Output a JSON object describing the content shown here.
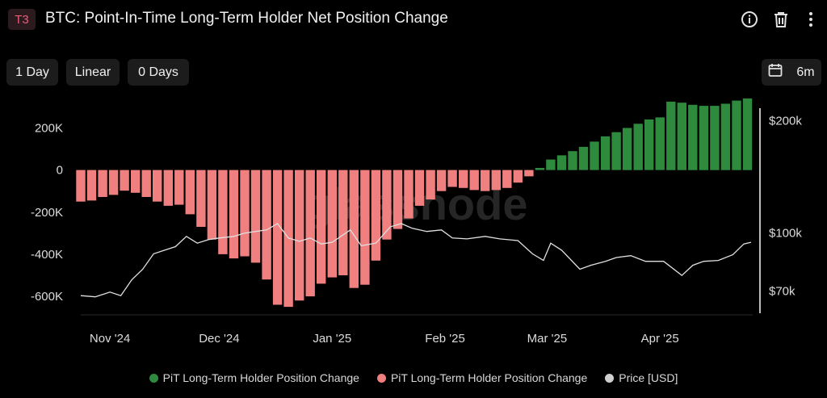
{
  "header": {
    "badge": "T3",
    "title": "BTC: Point-In-Time Long-Term Holder Net Position Change"
  },
  "toolbar": {
    "resolution": "1 Day",
    "scale": "Linear",
    "moving_average": "0 Days",
    "range": "6m"
  },
  "icons": [
    "info-icon",
    "trash-icon",
    "more-icon",
    "calendar-icon"
  ],
  "watermark": "glassnode",
  "colors": {
    "positive": "#2e8b3e",
    "negative": "#f07f7f",
    "price": "#e0e0e0",
    "background": "#000000"
  },
  "chart_data": {
    "type": "bar",
    "title": "BTC: Point-In-Time Long-Term Holder Net Position Change",
    "x_range": [
      "2024-10-24",
      "2025-04-26"
    ],
    "x_ticks": [
      {
        "date": "2024-11-01",
        "label": "Nov '24"
      },
      {
        "date": "2024-12-01",
        "label": "Dec '24"
      },
      {
        "date": "2025-01-01",
        "label": "Jan '25"
      },
      {
        "date": "2025-02-01",
        "label": "Feb '25"
      },
      {
        "date": "2025-03-01",
        "label": "Mar '25"
      },
      {
        "date": "2025-04-01",
        "label": "Apr '25"
      }
    ],
    "y_left": {
      "range": [
        -680000,
        290000
      ],
      "ticks": [
        {
          "value": 200000,
          "label": "200K"
        },
        {
          "value": 0,
          "label": "0"
        },
        {
          "value": -200000,
          "label": "-200K"
        },
        {
          "value": -400000,
          "label": "-400K"
        },
        {
          "value": -600000,
          "label": "-600K"
        }
      ]
    },
    "y_right": {
      "scale": "log",
      "range": [
        61000,
        215000
      ],
      "ticks": [
        {
          "value": 200000,
          "label": "$200k"
        },
        {
          "value": 100000,
          "label": "$100k"
        },
        {
          "value": 70000,
          "label": "$70k"
        }
      ]
    },
    "legend": [
      {
        "label": "PiT Long-Term Holder Position Change",
        "color": "#2e8b3e"
      },
      {
        "label": "PiT Long-Term Holder Position Change",
        "color": "#f07f7f"
      },
      {
        "label": "Price [USD]",
        "color": "#cfcfcf"
      }
    ],
    "series": [
      {
        "name": "PiT Long-Term Holder Position Change",
        "kind": "bar",
        "points": [
          [
            "2024-10-24",
            -150000
          ],
          [
            "2024-10-27",
            -145000
          ],
          [
            "2024-10-30",
            -128000
          ],
          [
            "2024-11-02",
            -118000
          ],
          [
            "2024-11-05",
            -98000
          ],
          [
            "2024-11-08",
            -108000
          ],
          [
            "2024-11-11",
            -128000
          ],
          [
            "2024-11-14",
            -150000
          ],
          [
            "2024-11-17",
            -170000
          ],
          [
            "2024-11-20",
            -165000
          ],
          [
            "2024-11-23",
            -210000
          ],
          [
            "2024-11-26",
            -270000
          ],
          [
            "2024-11-29",
            -330000
          ],
          [
            "2024-12-02",
            -400000
          ],
          [
            "2024-12-05",
            -420000
          ],
          [
            "2024-12-08",
            -410000
          ],
          [
            "2024-12-11",
            -440000
          ],
          [
            "2024-12-14",
            -520000
          ],
          [
            "2024-12-17",
            -640000
          ],
          [
            "2024-12-20",
            -650000
          ],
          [
            "2024-12-23",
            -620000
          ],
          [
            "2024-12-26",
            -600000
          ],
          [
            "2024-12-29",
            -540000
          ],
          [
            "2025-01-01",
            -510000
          ],
          [
            "2025-01-04",
            -500000
          ],
          [
            "2025-01-07",
            -560000
          ],
          [
            "2025-01-10",
            -545000
          ],
          [
            "2025-01-13",
            -430000
          ],
          [
            "2025-01-16",
            -330000
          ],
          [
            "2025-01-19",
            -280000
          ],
          [
            "2025-01-22",
            -230000
          ],
          [
            "2025-01-25",
            -170000
          ],
          [
            "2025-01-28",
            -140000
          ],
          [
            "2025-01-31",
            -100000
          ],
          [
            "2025-02-03",
            -80000
          ],
          [
            "2025-02-06",
            -85000
          ],
          [
            "2025-02-09",
            -95000
          ],
          [
            "2025-02-12",
            -100000
          ],
          [
            "2025-02-15",
            -95000
          ],
          [
            "2025-02-18",
            -85000
          ],
          [
            "2025-02-21",
            -60000
          ],
          [
            "2025-02-24",
            -30000
          ],
          [
            "2025-02-27",
            10000
          ],
          [
            "2025-03-02",
            50000
          ],
          [
            "2025-03-05",
            70000
          ],
          [
            "2025-03-08",
            90000
          ],
          [
            "2025-03-11",
            110000
          ],
          [
            "2025-03-14",
            135000
          ],
          [
            "2025-03-17",
            160000
          ],
          [
            "2025-03-20",
            180000
          ],
          [
            "2025-03-23",
            200000
          ],
          [
            "2025-03-26",
            220000
          ],
          [
            "2025-03-29",
            240000
          ],
          [
            "2025-04-01",
            250000
          ],
          [
            "2025-04-04",
            325000
          ],
          [
            "2025-04-07",
            320000
          ],
          [
            "2025-04-10",
            310000
          ],
          [
            "2025-04-13",
            305000
          ],
          [
            "2025-04-16",
            305000
          ],
          [
            "2025-04-19",
            315000
          ],
          [
            "2025-04-22",
            330000
          ],
          [
            "2025-04-25",
            340000
          ]
        ]
      },
      {
        "name": "Price [USD]",
        "kind": "line",
        "axis": "right",
        "points": [
          [
            "2024-10-24",
            68000
          ],
          [
            "2024-10-28",
            67500
          ],
          [
            "2024-11-01",
            69500
          ],
          [
            "2024-11-04",
            68000
          ],
          [
            "2024-11-07",
            75000
          ],
          [
            "2024-11-10",
            80000
          ],
          [
            "2024-11-13",
            88000
          ],
          [
            "2024-11-16",
            90000
          ],
          [
            "2024-11-19",
            92000
          ],
          [
            "2024-11-22",
            98000
          ],
          [
            "2024-11-25",
            94000
          ],
          [
            "2024-11-28",
            96000
          ],
          [
            "2024-12-01",
            97000
          ],
          [
            "2024-12-05",
            98000
          ],
          [
            "2024-12-08",
            100000
          ],
          [
            "2024-12-11",
            101000
          ],
          [
            "2024-12-14",
            102000
          ],
          [
            "2024-12-17",
            106000
          ],
          [
            "2024-12-20",
            97000
          ],
          [
            "2024-12-23",
            95000
          ],
          [
            "2024-12-26",
            97000
          ],
          [
            "2024-12-29",
            93500
          ],
          [
            "2025-01-01",
            94500
          ],
          [
            "2025-01-06",
            102000
          ],
          [
            "2025-01-09",
            92500
          ],
          [
            "2025-01-13",
            94000
          ],
          [
            "2025-01-17",
            104000
          ],
          [
            "2025-01-20",
            106000
          ],
          [
            "2025-01-23",
            103000
          ],
          [
            "2025-01-27",
            101000
          ],
          [
            "2025-01-31",
            102000
          ],
          [
            "2025-02-03",
            97000
          ],
          [
            "2025-02-07",
            96500
          ],
          [
            "2025-02-12",
            98000
          ],
          [
            "2025-02-16",
            96500
          ],
          [
            "2025-02-21",
            95500
          ],
          [
            "2025-02-25",
            88000
          ],
          [
            "2025-02-28",
            84500
          ],
          [
            "2025-03-02",
            94000
          ],
          [
            "2025-03-05",
            90000
          ],
          [
            "2025-03-10",
            80000
          ],
          [
            "2025-03-13",
            82000
          ],
          [
            "2025-03-17",
            84000
          ],
          [
            "2025-03-20",
            86000
          ],
          [
            "2025-03-24",
            87000
          ],
          [
            "2025-03-28",
            84000
          ],
          [
            "2025-04-02",
            84000
          ],
          [
            "2025-04-07",
            77000
          ],
          [
            "2025-04-10",
            82000
          ],
          [
            "2025-04-13",
            84000
          ],
          [
            "2025-04-17",
            84500
          ],
          [
            "2025-04-21",
            87500
          ],
          [
            "2025-04-24",
            93500
          ],
          [
            "2025-04-26",
            94500
          ]
        ]
      }
    ]
  }
}
